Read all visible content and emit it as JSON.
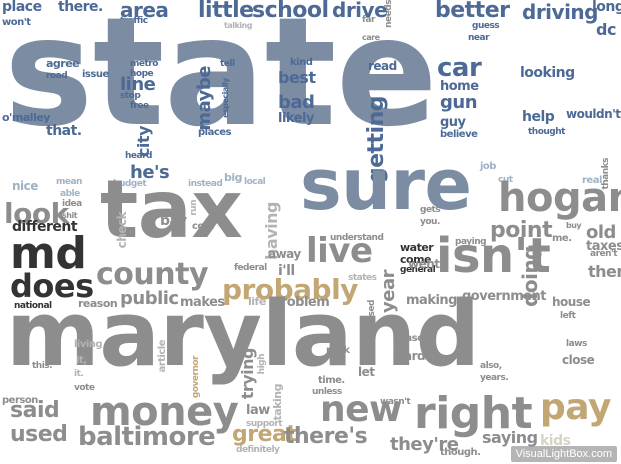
{
  "colors": {
    "slate": "#7b8ca3",
    "blue": "#4c6a95",
    "lightblue": "#9fb3c6",
    "dark": "#333333",
    "gray": "#8d8d8d",
    "lightgray": "#b3b3b3",
    "tan": "#c2a774",
    "offwhite": "#d9d3c7"
  },
  "words": [
    {
      "text": "place",
      "color": "blue"
    },
    {
      "text": "there.",
      "color": "blue"
    },
    {
      "text": "won't",
      "color": "blue"
    },
    {
      "text": "area",
      "color": "blue"
    },
    {
      "text": "traffic",
      "color": "blue"
    },
    {
      "text": "little",
      "color": "blue"
    },
    {
      "text": "school",
      "color": "blue"
    },
    {
      "text": "talking",
      "color": "lightgray"
    },
    {
      "text": "drive",
      "color": "blue"
    },
    {
      "text": "far",
      "color": "gray"
    },
    {
      "text": "care",
      "color": "gray"
    },
    {
      "text": "needs",
      "color": "gray"
    },
    {
      "text": "better",
      "color": "blue"
    },
    {
      "text": "guess",
      "color": "blue"
    },
    {
      "text": "near",
      "color": "blue"
    },
    {
      "text": "driving",
      "color": "blue"
    },
    {
      "text": "long",
      "color": "blue"
    },
    {
      "text": "dc",
      "color": "blue"
    },
    {
      "text": "state",
      "color": "slate"
    },
    {
      "text": "agree",
      "color": "blue"
    },
    {
      "text": "road",
      "color": "blue"
    },
    {
      "text": "issue",
      "color": "blue"
    },
    {
      "text": "metro",
      "color": "blue"
    },
    {
      "text": "hope",
      "color": "blue"
    },
    {
      "text": "tell",
      "color": "blue"
    },
    {
      "text": "kind",
      "color": "blue"
    },
    {
      "text": "read",
      "color": "blue"
    },
    {
      "text": "car",
      "color": "blue"
    },
    {
      "text": "looking",
      "color": "blue"
    },
    {
      "text": "line",
      "color": "blue"
    },
    {
      "text": "stop",
      "color": "blue"
    },
    {
      "text": "free",
      "color": "blue"
    },
    {
      "text": "maybe",
      "color": "blue"
    },
    {
      "text": "especially",
      "color": "blue"
    },
    {
      "text": "best",
      "color": "blue"
    },
    {
      "text": "home",
      "color": "blue"
    },
    {
      "text": "gun",
      "color": "blue"
    },
    {
      "text": "guy",
      "color": "blue"
    },
    {
      "text": "believe",
      "color": "blue"
    },
    {
      "text": "help",
      "color": "blue"
    },
    {
      "text": "wouldn't",
      "color": "blue"
    },
    {
      "text": "thought",
      "color": "blue"
    },
    {
      "text": "o'malley",
      "color": "blue"
    },
    {
      "text": "that.",
      "color": "blue"
    },
    {
      "text": "city",
      "color": "blue"
    },
    {
      "text": "heard",
      "color": "blue"
    },
    {
      "text": "places",
      "color": "blue"
    },
    {
      "text": "bad",
      "color": "blue"
    },
    {
      "text": "likely",
      "color": "blue"
    },
    {
      "text": "getting",
      "color": "blue"
    },
    {
      "text": "job",
      "color": "lightblue"
    },
    {
      "text": "thanks",
      "color": "gray"
    },
    {
      "text": "he's",
      "color": "blue"
    },
    {
      "text": "nice",
      "color": "lightblue"
    },
    {
      "text": "mean",
      "color": "lightblue"
    },
    {
      "text": "able",
      "color": "lightblue"
    },
    {
      "text": "budget",
      "color": "lightblue"
    },
    {
      "text": "instead",
      "color": "lightblue"
    },
    {
      "text": "big",
      "color": "lightblue"
    },
    {
      "text": "local",
      "color": "lightblue"
    },
    {
      "text": "cut",
      "color": "lightblue"
    },
    {
      "text": "real",
      "color": "lightblue"
    },
    {
      "text": "sure",
      "color": "slate"
    },
    {
      "text": "tax",
      "color": "gray"
    },
    {
      "text": "hogan",
      "color": "gray"
    },
    {
      "text": "look",
      "color": "gray"
    },
    {
      "text": "idea",
      "color": "gray"
    },
    {
      "text": "shit",
      "color": "gray"
    },
    {
      "text": "run",
      "color": "lightgray"
    },
    {
      "text": "gets",
      "color": "gray"
    },
    {
      "text": "you.",
      "color": "gray"
    },
    {
      "text": "check",
      "color": "lightgray"
    },
    {
      "text": "bay",
      "color": "gray"
    },
    {
      "text": "cost",
      "color": "gray"
    },
    {
      "text": "having",
      "color": "lightgray"
    },
    {
      "text": "point",
      "color": "gray"
    },
    {
      "text": "buy",
      "color": "gray"
    },
    {
      "text": "me.",
      "color": "gray"
    },
    {
      "text": "old",
      "color": "gray"
    },
    {
      "text": "different",
      "color": "dark"
    },
    {
      "text": "understand",
      "color": "gray"
    },
    {
      "text": "paying",
      "color": "gray"
    },
    {
      "text": "taxes",
      "color": "gray"
    },
    {
      "text": "md",
      "color": "dark"
    },
    {
      "text": "live",
      "color": "gray"
    },
    {
      "text": "water",
      "color": "dark"
    },
    {
      "text": "come",
      "color": "dark"
    },
    {
      "text": "general",
      "color": "dark"
    },
    {
      "text": "isn't",
      "color": "gray"
    },
    {
      "text": "aren't",
      "color": "gray"
    },
    {
      "text": "away",
      "color": "gray"
    },
    {
      "text": "federal",
      "color": "gray"
    },
    {
      "text": "county",
      "color": "gray"
    },
    {
      "text": "i'll",
      "color": "gray"
    },
    {
      "text": "went",
      "color": "gray"
    },
    {
      "text": "doing",
      "color": "gray"
    },
    {
      "text": "them.",
      "color": "gray"
    },
    {
      "text": "does",
      "color": "dark"
    },
    {
      "text": "probably",
      "color": "tan"
    },
    {
      "text": "states",
      "color": "lightgray"
    },
    {
      "text": "year",
      "color": "gray"
    },
    {
      "text": "making",
      "color": "gray"
    },
    {
      "text": "government",
      "color": "gray"
    },
    {
      "text": "house",
      "color": "gray"
    },
    {
      "text": "reason",
      "color": "gray"
    },
    {
      "text": "public",
      "color": "gray"
    },
    {
      "text": "makes",
      "color": "gray"
    },
    {
      "text": "life",
      "color": "lightgray"
    },
    {
      "text": "problem",
      "color": "gray"
    },
    {
      "text": "based",
      "color": "gray"
    },
    {
      "text": "national",
      "color": "dark"
    },
    {
      "text": "left",
      "color": "gray"
    },
    {
      "text": "maryland",
      "color": "gray"
    },
    {
      "text": "living",
      "color": "lightgray"
    },
    {
      "text": "it,",
      "color": "lightgray"
    },
    {
      "text": "article",
      "color": "lightgray"
    },
    {
      "text": "governor",
      "color": "tan"
    },
    {
      "text": "high",
      "color": "lightgray"
    },
    {
      "text": "park",
      "color": "gray"
    },
    {
      "text": "case",
      "color": "gray"
    },
    {
      "text": "hard",
      "color": "gray"
    },
    {
      "text": "laws",
      "color": "gray"
    },
    {
      "text": "close",
      "color": "gray"
    },
    {
      "text": "this.",
      "color": "gray"
    },
    {
      "text": "it.",
      "color": "lightgray"
    },
    {
      "text": "trying",
      "color": "gray"
    },
    {
      "text": "taking",
      "color": "lightgray"
    },
    {
      "text": "let",
      "color": "gray"
    },
    {
      "text": "time.",
      "color": "gray"
    },
    {
      "text": "also,",
      "color": "gray"
    },
    {
      "text": "years.",
      "color": "gray"
    },
    {
      "text": "vote",
      "color": "gray"
    },
    {
      "text": "person",
      "color": "gray"
    },
    {
      "text": "unless",
      "color": "gray"
    },
    {
      "text": "said",
      "color": "gray"
    },
    {
      "text": "money",
      "color": "gray"
    },
    {
      "text": "new",
      "color": "gray"
    },
    {
      "text": "law",
      "color": "gray"
    },
    {
      "text": "support",
      "color": "lightgray"
    },
    {
      "text": "wasn't",
      "color": "gray"
    },
    {
      "text": "right",
      "color": "gray"
    },
    {
      "text": "pay",
      "color": "tan"
    },
    {
      "text": "used",
      "color": "gray"
    },
    {
      "text": "baltimore",
      "color": "gray"
    },
    {
      "text": "great",
      "color": "tan"
    },
    {
      "text": "definitely",
      "color": "lightgray"
    },
    {
      "text": "there's",
      "color": "gray"
    },
    {
      "text": "they're",
      "color": "gray"
    },
    {
      "text": "though.",
      "color": "gray"
    },
    {
      "text": "saying",
      "color": "gray"
    },
    {
      "text": "kids",
      "color": "offwhite"
    }
  ],
  "watermark": "VisualLightBox.com"
}
